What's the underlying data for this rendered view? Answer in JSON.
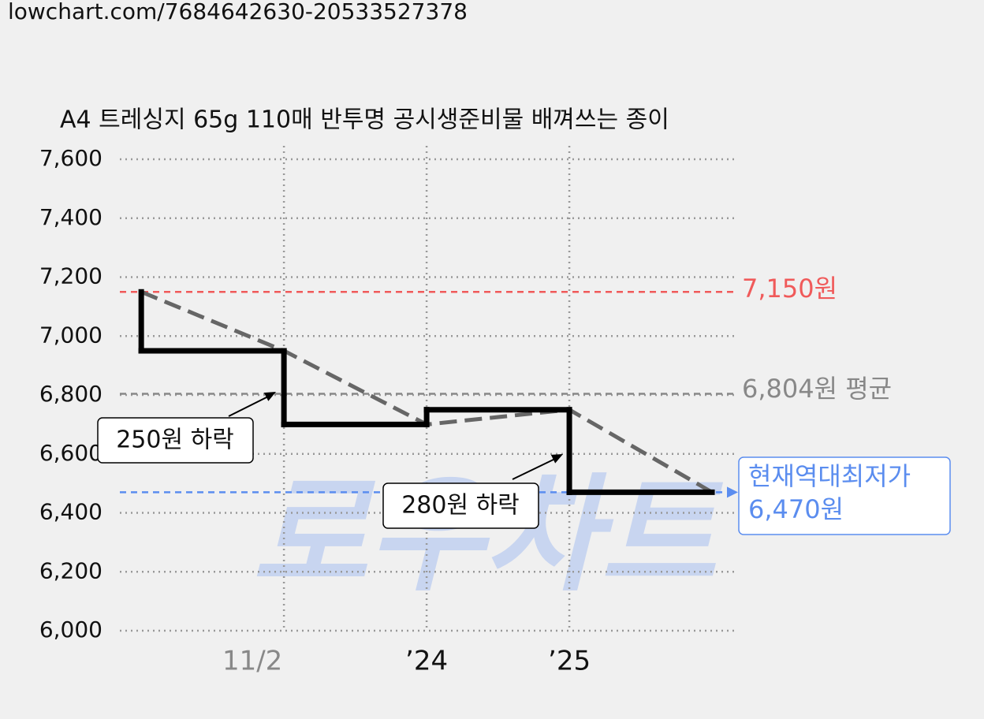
{
  "url": "lowchart.com/7684642630-20533527378",
  "watermark": "로우차트",
  "chart_data": {
    "type": "line",
    "title": "A4 트레싱지 65g 110매 반투명 공시생준비물 배껴쓰는 종이",
    "x": [
      0,
      1,
      2,
      3,
      4
    ],
    "series": [
      {
        "values": [
          7150,
          6950,
          6700,
          6750,
          6470
        ],
        "color": "#000000"
      }
    ],
    "trend_color": "#666666",
    "xlim": [
      -0.15,
      4.16
    ],
    "xticks": [
      {
        "value": 1,
        "label": "11/2"
      },
      {
        "value": 2,
        "label": "’24"
      },
      {
        "value": 3,
        "label": "’25"
      }
    ],
    "ylim": [
      6000,
      7600
    ],
    "yticks": [
      {
        "value": 6000,
        "label": "6,000"
      },
      {
        "value": 6200,
        "label": "6,200"
      },
      {
        "value": 6400,
        "label": "6,400"
      },
      {
        "value": 6600,
        "label": "6,600"
      },
      {
        "value": 6800,
        "label": "6,800"
      },
      {
        "value": 7000,
        "label": "7,000"
      },
      {
        "value": 7200,
        "label": "7,200"
      },
      {
        "value": 7400,
        "label": "7,400"
      },
      {
        "value": 7600,
        "label": "7,600"
      }
    ],
    "grid": true,
    "reference_lines": [
      {
        "value": 7150,
        "label": [
          "7,150원"
        ],
        "color": "#f05a5a"
      },
      {
        "value": 6804,
        "label": [
          "6,804원 평균"
        ],
        "color": "#888888"
      },
      {
        "value": 6470,
        "label": [
          "현재역대최저가",
          "6,470원"
        ],
        "color": "#5b8def"
      }
    ],
    "annotations": [
      "250원 하락",
      "280원 하락"
    ]
  }
}
